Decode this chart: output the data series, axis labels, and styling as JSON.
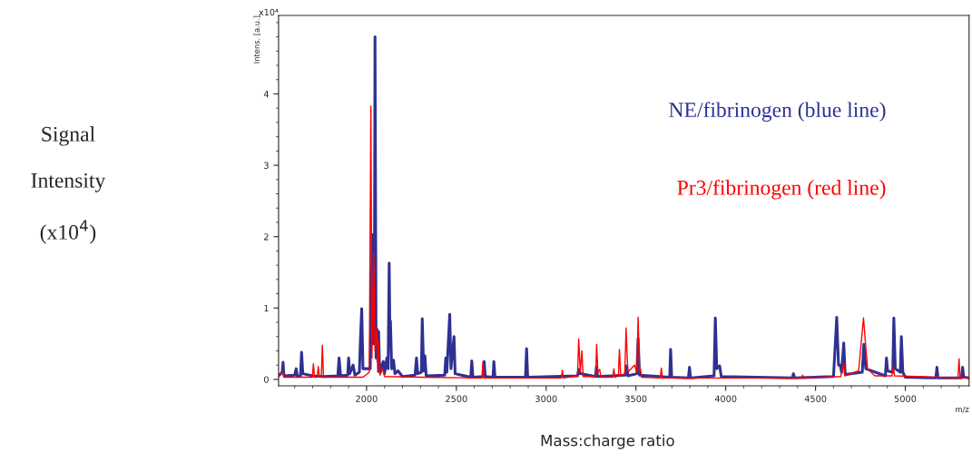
{
  "chart_data": {
    "type": "line",
    "xlabel": "m/z",
    "ylabel": "Intens. [a.u.]",
    "xlim": [
      1510,
      5355
    ],
    "ylim": [
      -0.09,
      5.1
    ],
    "xticks": [
      2000,
      2500,
      3000,
      3500,
      4000,
      4500,
      5000
    ],
    "yticks": [
      0,
      1,
      2,
      3,
      4
    ],
    "grid": false,
    "marker": "none",
    "line_style": "solid",
    "annotations": [
      "x10⁴",
      "Signal\n\nIntensity\n\n(x10$^{4}$)",
      "Mass:charge ratio"
    ],
    "series": [
      {
        "name": "NE/fibrinogen (blue line)",
        "color": "#2e3192",
        "x": [
          1510,
          1530,
          1535,
          1540,
          1600,
          1608,
          1615,
          1632,
          1638,
          1645,
          1700,
          1760,
          1840,
          1847,
          1855,
          1895,
          1900,
          1906,
          1925,
          1935,
          1960,
          1966,
          1973,
          1980,
          2020,
          2032,
          2036,
          2039,
          2043,
          2047,
          2053,
          2059,
          2063,
          2067,
          2073,
          2093,
          2100,
          2113,
          2120,
          2126,
          2130,
          2133,
          2140,
          2150,
          2158,
          2175,
          2200,
          2270,
          2278,
          2285,
          2305,
          2310,
          2318,
          2325,
          2332,
          2435,
          2441,
          2447,
          2463,
          2470,
          2487,
          2493,
          2580,
          2586,
          2592,
          2650,
          2655,
          2661,
          2704,
          2709,
          2715,
          2885,
          2891,
          2897,
          3175,
          3181,
          3190,
          3275,
          3280,
          3286,
          3440,
          3448,
          3455,
          3505,
          3512,
          3520,
          3688,
          3693,
          3699,
          3792,
          3798,
          3804,
          3935,
          3942,
          3950,
          3966,
          3975,
          4371,
          4377,
          4383,
          4600,
          4618,
          4628,
          4638,
          4645,
          4657,
          4665,
          4760,
          4769,
          4780,
          4889,
          4895,
          4901,
          4930,
          4936,
          4944,
          4972,
          4978,
          4986,
          5000,
          5170,
          5176,
          5182,
          5313,
          5319,
          5325,
          5355
        ],
        "values": [
          0.05,
          0.1,
          0.24,
          0.05,
          0.06,
          0.15,
          0.04,
          0.05,
          0.38,
          0.08,
          0.05,
          0.04,
          0.05,
          0.3,
          0.05,
          0.06,
          0.3,
          0.08,
          0.2,
          0.06,
          0.1,
          0.57,
          0.99,
          0.15,
          0.15,
          2.03,
          0.5,
          1.33,
          0.5,
          4.8,
          0.3,
          0.7,
          0.25,
          0.67,
          0.1,
          0.25,
          0.08,
          0.3,
          0.15,
          1.63,
          0.6,
          0.82,
          0.15,
          0.27,
          0.08,
          0.12,
          0.04,
          0.06,
          0.3,
          0.08,
          0.1,
          0.85,
          0.12,
          0.33,
          0.05,
          0.06,
          0.3,
          0.1,
          0.91,
          0.15,
          0.6,
          0.08,
          0.03,
          0.26,
          0.03,
          0.04,
          0.25,
          0.04,
          0.03,
          0.25,
          0.03,
          0.03,
          0.43,
          0.03,
          0.05,
          0.14,
          0.08,
          0.04,
          0.18,
          0.04,
          0.06,
          0.19,
          0.05,
          0.08,
          0.57,
          0.06,
          0.03,
          0.42,
          0.03,
          0.02,
          0.17,
          0.02,
          0.05,
          0.86,
          0.15,
          0.19,
          0.04,
          0.02,
          0.08,
          0.02,
          0.04,
          0.87,
          0.2,
          0.2,
          0.1,
          0.51,
          0.07,
          0.1,
          0.49,
          0.15,
          0.05,
          0.3,
          0.12,
          0.1,
          0.86,
          0.15,
          0.1,
          0.6,
          0.1,
          0.03,
          0.02,
          0.17,
          0.02,
          0.02,
          0.17,
          0.03,
          0.02
        ]
      },
      {
        "name": "Pr3/fibrinogen (red line)",
        "color": "#ff0000",
        "x": [
          1510,
          1535,
          1540,
          1698,
          1704,
          1710,
          1725,
          1731,
          1737,
          1748,
          1754,
          1760,
          1980,
          2015,
          2024,
          2030,
          2040,
          2047,
          2057,
          2062,
          2067,
          2075,
          2090,
          2100,
          2300,
          2642,
          2648,
          2654,
          3085,
          3090,
          3096,
          3175,
          3181,
          3190,
          3199,
          3206,
          3276,
          3281,
          3288,
          3298,
          3305,
          3372,
          3377,
          3383,
          3402,
          3408,
          3415,
          3438,
          3445,
          3455,
          3492,
          3505,
          3512,
          3520,
          3525,
          3532,
          3636,
          3641,
          3647,
          4423,
          4428,
          4434,
          4640,
          4658,
          4664,
          4740,
          4767,
          4776,
          4790,
          4830,
          4926,
          4932,
          4940,
          5293,
          5299,
          5305,
          5355
        ],
        "values": [
          0.04,
          0.1,
          0.03,
          0.03,
          0.22,
          0.03,
          0.03,
          0.18,
          0.03,
          0.04,
          0.48,
          0.03,
          0.03,
          0.1,
          3.83,
          0.3,
          1.76,
          0.4,
          0.72,
          0.1,
          0.55,
          0.06,
          0.15,
          0.04,
          0.03,
          0.02,
          0.25,
          0.02,
          0.02,
          0.13,
          0.02,
          0.05,
          0.57,
          0.1,
          0.4,
          0.04,
          0.04,
          0.49,
          0.1,
          0.14,
          0.03,
          0.03,
          0.15,
          0.03,
          0.05,
          0.42,
          0.05,
          0.08,
          0.72,
          0.1,
          0.2,
          0.1,
          0.87,
          0.1,
          0.15,
          0.03,
          0.02,
          0.16,
          0.02,
          0.02,
          0.06,
          0.02,
          0.04,
          0.23,
          0.05,
          0.12,
          0.86,
          0.57,
          0.15,
          0.05,
          0.05,
          0.18,
          0.05,
          0.02,
          0.29,
          0.02,
          0.02
        ]
      }
    ]
  }
}
